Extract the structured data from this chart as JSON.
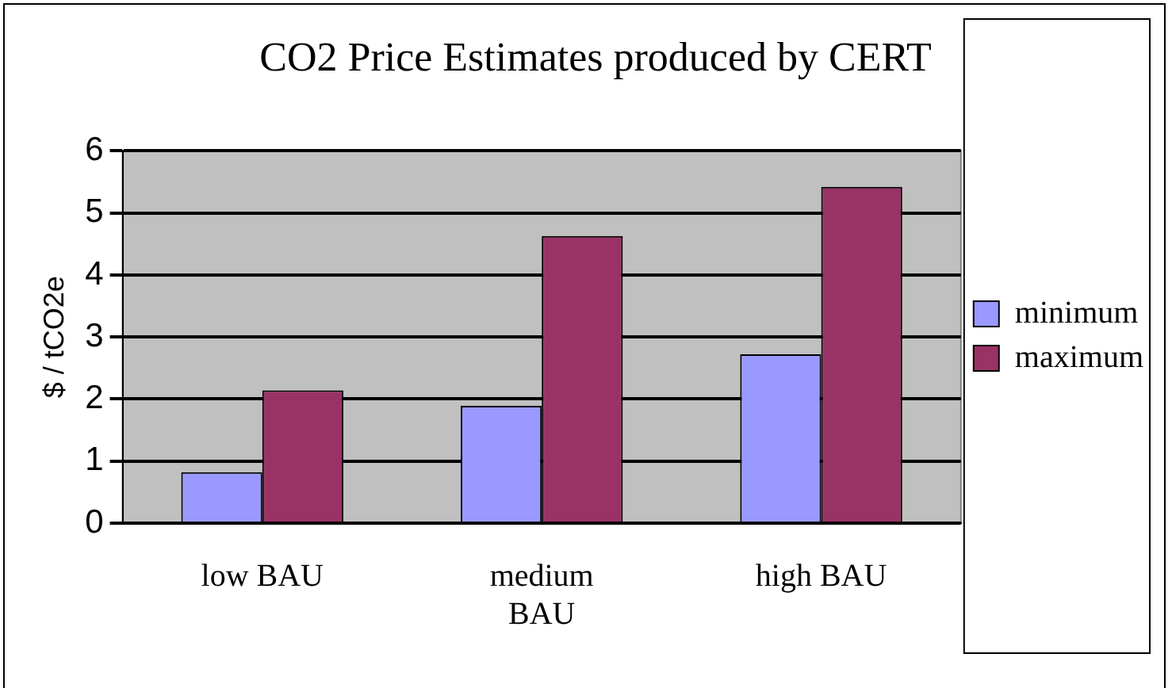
{
  "chart_data": {
    "type": "bar",
    "title": "CO2 Price Estimates produced by CERT",
    "ylabel": "$ / tCO2e",
    "categories": [
      "low BAU",
      "medium BAU",
      "high BAU"
    ],
    "series": [
      {
        "name": "minimum",
        "color": "#9999ff",
        "values": [
          0.82,
          1.89,
          2.72
        ]
      },
      {
        "name": "maximum",
        "color": "#993366",
        "values": [
          2.14,
          4.63,
          5.42
        ]
      }
    ],
    "ylim": [
      0,
      6
    ],
    "yticks": [
      0,
      1,
      2,
      3,
      4,
      5,
      6
    ],
    "grid": "y",
    "legend": "right"
  }
}
